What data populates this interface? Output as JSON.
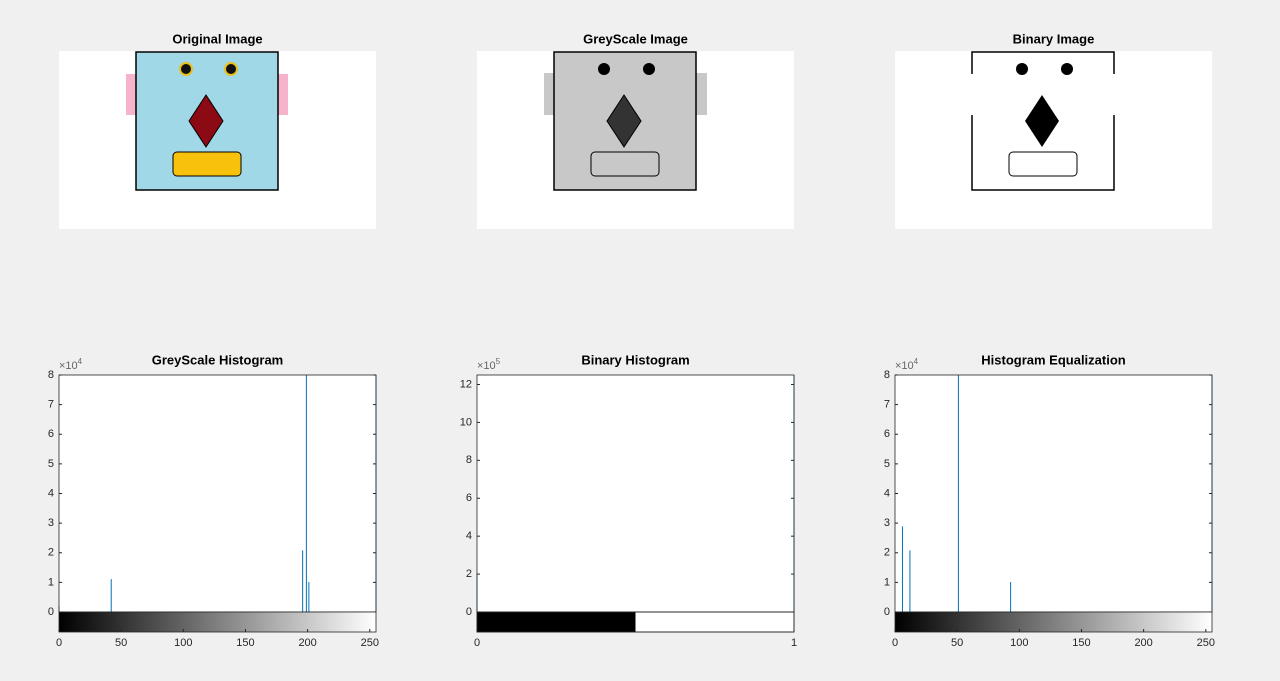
{
  "chart_data": [
    {
      "type": "image",
      "title": "Original Image"
    },
    {
      "type": "image",
      "title": "GreyScale Image"
    },
    {
      "type": "image",
      "title": "Binary Image"
    },
    {
      "type": "stem",
      "title": "GreyScale Histogram",
      "color": "#0072bd",
      "colorbar": "gradient",
      "x": [
        0,
        42,
        196,
        199,
        201,
        255
      ],
      "values": [
        2000,
        11100,
        20800,
        80000,
        10100,
        80000
      ],
      "xlim": [
        0,
        255
      ],
      "xticks": [
        0,
        50,
        100,
        150,
        200,
        250
      ],
      "ylim": [
        0,
        80000
      ],
      "yticks": [
        {
          "value": 0,
          "label": "0"
        },
        {
          "value": 10000,
          "label": "1"
        },
        {
          "value": 20000,
          "label": "2"
        },
        {
          "value": 30000,
          "label": "3"
        },
        {
          "value": 40000,
          "label": "4"
        },
        {
          "value": 50000,
          "label": "5"
        },
        {
          "value": 60000,
          "label": "6"
        },
        {
          "value": 70000,
          "label": "7"
        },
        {
          "value": 80000,
          "label": "8"
        }
      ],
      "y_exponent": {
        "base": "×10",
        "power": "4"
      }
    },
    {
      "type": "stem",
      "title": "Binary Histogram",
      "color": "#0072bd",
      "colorbar": "binary",
      "x": [
        0,
        1
      ],
      "values": [
        200000,
        1250000
      ],
      "xlim": [
        0,
        1
      ],
      "xticks": [
        0,
        1
      ],
      "ylim": [
        0,
        1250000
      ],
      "yticks": [
        {
          "value": 0,
          "label": "0"
        },
        {
          "value": 200000,
          "label": "2"
        },
        {
          "value": 400000,
          "label": "4"
        },
        {
          "value": 600000,
          "label": "6"
        },
        {
          "value": 800000,
          "label": "8"
        },
        {
          "value": 1000000,
          "label": "10"
        },
        {
          "value": 1200000,
          "label": "12"
        }
      ],
      "y_exponent": {
        "base": "×10",
        "power": "5"
      }
    },
    {
      "type": "stem",
      "title": "Histogram Equalization",
      "color": "#0072bd",
      "colorbar": "gradient",
      "x": [
        6,
        12,
        51,
        93,
        255
      ],
      "values": [
        28900,
        20800,
        80000,
        10100,
        80000
      ],
      "xlim": [
        0,
        255
      ],
      "xticks": [
        0,
        50,
        100,
        150,
        200,
        250
      ],
      "ylim": [
        0,
        80000
      ],
      "yticks": [
        {
          "value": 0,
          "label": "0"
        },
        {
          "value": 10000,
          "label": "1"
        },
        {
          "value": 20000,
          "label": "2"
        },
        {
          "value": 30000,
          "label": "3"
        },
        {
          "value": 40000,
          "label": "4"
        },
        {
          "value": 50000,
          "label": "5"
        },
        {
          "value": 60000,
          "label": "6"
        },
        {
          "value": 70000,
          "label": "7"
        },
        {
          "value": 80000,
          "label": "8"
        }
      ],
      "y_exponent": {
        "base": "×10",
        "power": "4"
      }
    }
  ]
}
